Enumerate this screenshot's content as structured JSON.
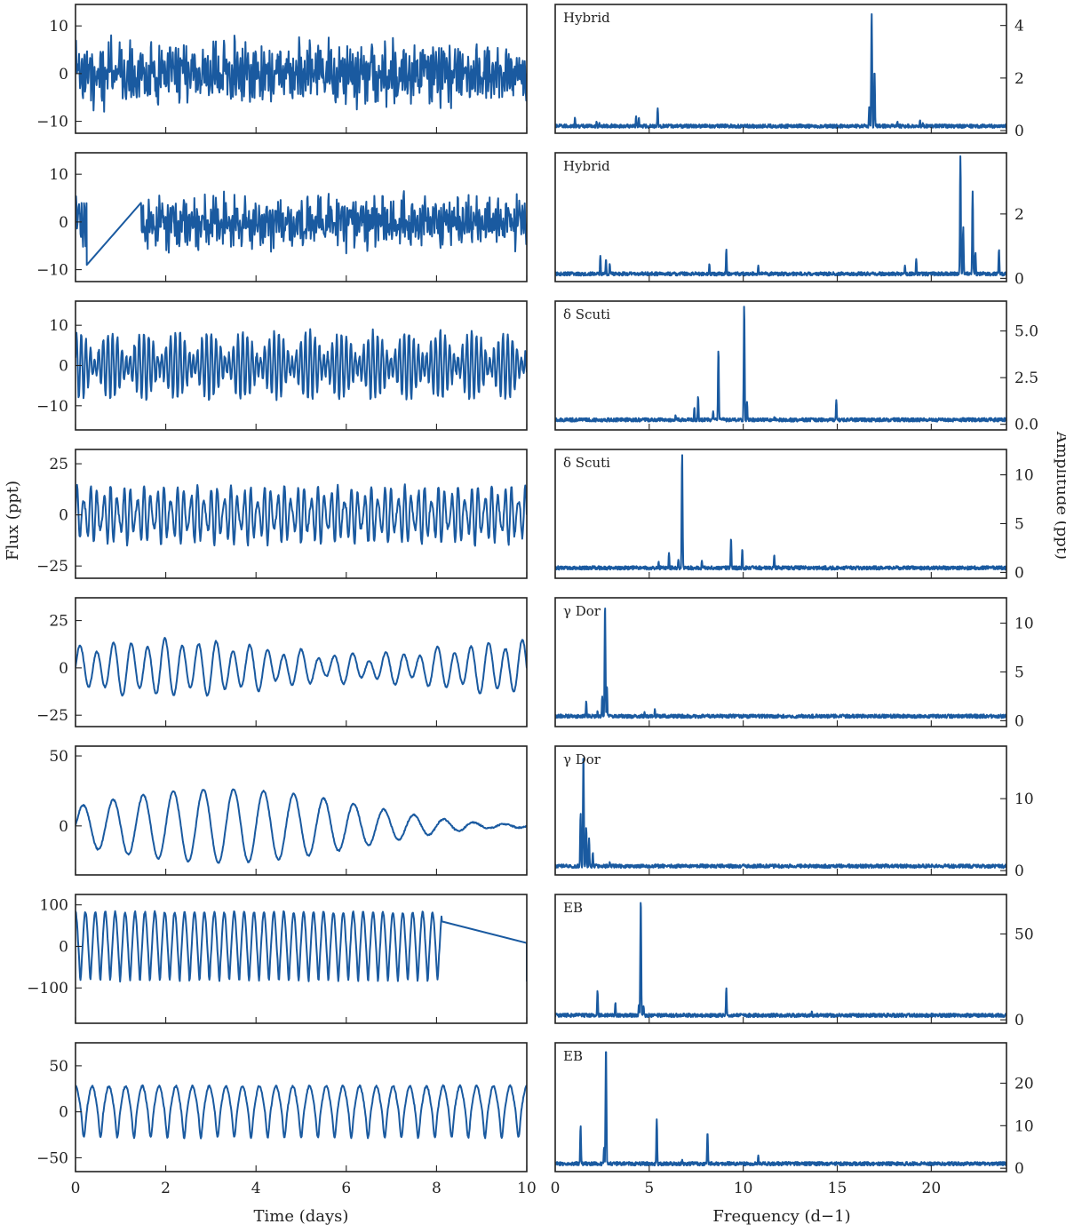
{
  "figure": {
    "left_xlabel": "Time (days)",
    "left_ylabel": "Flux (ppt)",
    "right_xlabel": "Frequency (d−1)",
    "right_ylabel": "Amplitude (ppt)",
    "line_color": "#1a5aa0"
  },
  "chart_data": [
    {
      "type": "line",
      "panel": "light_curve",
      "row": 0,
      "xlim": [
        0,
        10
      ],
      "ylim": [
        -12.5,
        14.5
      ],
      "yticks": [
        -10,
        0,
        10
      ],
      "xticks": [
        0,
        2,
        4,
        6,
        8,
        10
      ],
      "amplitude": 5,
      "gap": null
    },
    {
      "type": "line",
      "panel": "periodogram",
      "row": 0,
      "label": "Hybrid",
      "xlim": [
        0,
        24
      ],
      "ylim": [
        -0.1,
        4.8
      ],
      "yticks": [
        0,
        2,
        4
      ],
      "xticks": [
        0,
        5,
        10,
        15,
        20
      ],
      "peaks": [
        [
          16.83,
          4.5
        ],
        [
          16.98,
          2.3
        ],
        [
          16.7,
          0.9
        ],
        [
          5.45,
          0.85
        ],
        [
          4.3,
          0.55
        ],
        [
          4.45,
          0.5
        ],
        [
          1.05,
          0.5
        ],
        [
          2.2,
          0.35
        ],
        [
          2.35,
          0.3
        ],
        [
          18.2,
          0.35
        ],
        [
          19.4,
          0.4
        ],
        [
          19.55,
          0.3
        ],
        [
          3.0,
          0.25
        ]
      ]
    },
    {
      "type": "line",
      "panel": "light_curve",
      "row": 1,
      "xlim": [
        0,
        10
      ],
      "ylim": [
        -12.5,
        14.5
      ],
      "yticks": [
        -10,
        0,
        10
      ],
      "xticks": [
        0,
        2,
        4,
        6,
        8,
        10
      ],
      "amplitude": 4,
      "gap": [
        0.25,
        1.45
      ],
      "gap_values": [
        -9,
        4
      ]
    },
    {
      "type": "line",
      "panel": "periodogram",
      "row": 1,
      "label": "Hybrid",
      "xlim": [
        0,
        24
      ],
      "ylim": [
        -0.1,
        3.9
      ],
      "yticks": [
        0,
        2
      ],
      "xticks": [
        0,
        5,
        10,
        15,
        20
      ],
      "peaks": [
        [
          21.55,
          3.8
        ],
        [
          21.7,
          1.6
        ],
        [
          22.2,
          2.7
        ],
        [
          22.35,
          0.8
        ],
        [
          23.6,
          0.9
        ],
        [
          9.1,
          0.9
        ],
        [
          8.2,
          0.45
        ],
        [
          10.8,
          0.4
        ],
        [
          2.4,
          0.7
        ],
        [
          2.7,
          0.6
        ],
        [
          2.9,
          0.45
        ],
        [
          18.6,
          0.4
        ],
        [
          19.2,
          0.6
        ]
      ]
    },
    {
      "type": "line",
      "panel": "light_curve",
      "row": 2,
      "xlim": [
        0,
        10
      ],
      "ylim": [
        -16,
        16
      ],
      "yticks": [
        -10,
        0,
        10
      ],
      "xticks": [
        0,
        2,
        4,
        6,
        8,
        10
      ],
      "amplitude": 7,
      "gap": null
    },
    {
      "type": "line",
      "panel": "periodogram",
      "row": 2,
      "label": "δ Scuti",
      "xlim": [
        0,
        24
      ],
      "ylim": [
        -0.3,
        6.6
      ],
      "yticks": [
        0.0,
        2.5,
        5.0
      ],
      "xticks": [
        0,
        5,
        10,
        15,
        20
      ],
      "peaks": [
        [
          10.05,
          6.4
        ],
        [
          8.68,
          4.0
        ],
        [
          10.2,
          1.2
        ],
        [
          7.6,
          1.5
        ],
        [
          7.4,
          0.9
        ],
        [
          8.4,
          0.7
        ],
        [
          14.95,
          1.3
        ],
        [
          6.4,
          0.5
        ],
        [
          11.65,
          0.4
        ],
        [
          13.0,
          0.3
        ],
        [
          16.6,
          0.2
        ],
        [
          19.2,
          0.2
        ]
      ]
    },
    {
      "type": "line",
      "panel": "light_curve",
      "row": 3,
      "xlim": [
        0,
        10
      ],
      "ylim": [
        -31,
        32
      ],
      "yticks": [
        -25,
        0,
        25
      ],
      "xticks": [
        0,
        2,
        4,
        6,
        8,
        10
      ],
      "amplitude": 12,
      "gap": null
    },
    {
      "type": "line",
      "panel": "periodogram",
      "row": 3,
      "label": "δ Scuti",
      "xlim": [
        0,
        24
      ],
      "ylim": [
        -0.6,
        12.6
      ],
      "yticks": [
        0,
        5,
        10
      ],
      "xticks": [
        0,
        5,
        10,
        15,
        20
      ],
      "peaks": [
        [
          6.75,
          12.2
        ],
        [
          9.35,
          3.5
        ],
        [
          9.95,
          2.4
        ],
        [
          11.65,
          1.8
        ],
        [
          6.05,
          2.0
        ],
        [
          5.5,
          1.1
        ],
        [
          6.55,
          1.3
        ],
        [
          7.8,
          1.2
        ],
        [
          10.5,
          0.7
        ],
        [
          15.5,
          0.6
        ],
        [
          12.0,
          0.4
        ]
      ]
    },
    {
      "type": "line",
      "panel": "light_curve",
      "row": 4,
      "xlim": [
        0,
        10
      ],
      "ylim": [
        -31,
        37
      ],
      "yticks": [
        -25,
        0,
        25
      ],
      "xticks": [
        0,
        2,
        4,
        6,
        8,
        10
      ],
      "amplitude": 12,
      "gap": null
    },
    {
      "type": "line",
      "panel": "periodogram",
      "row": 4,
      "label": "γ Dor",
      "xlim": [
        0,
        24
      ],
      "ylim": [
        -0.6,
        12.6
      ],
      "yticks": [
        0,
        5,
        10
      ],
      "xticks": [
        0,
        5,
        10,
        15,
        20
      ],
      "peaks": [
        [
          2.65,
          12.0
        ],
        [
          2.75,
          3.6
        ],
        [
          2.5,
          2.5
        ],
        [
          1.65,
          2.0
        ],
        [
          2.25,
          1.0
        ],
        [
          4.75,
          0.9
        ],
        [
          5.3,
          1.2
        ]
      ]
    },
    {
      "type": "line",
      "panel": "light_curve",
      "row": 5,
      "xlim": [
        0,
        10
      ],
      "ylim": [
        -35,
        57
      ],
      "yticks": [
        0,
        50
      ],
      "xticks": [
        0,
        2,
        4,
        6,
        8,
        10
      ],
      "amplitude": 25,
      "gap": null
    },
    {
      "type": "line",
      "panel": "periodogram",
      "row": 5,
      "label": "γ Dor",
      "xlim": [
        0,
        24
      ],
      "ylim": [
        -0.6,
        17.3
      ],
      "yticks": [
        0,
        10
      ],
      "xticks": [
        0,
        5,
        10,
        15,
        20
      ],
      "peaks": [
        [
          1.5,
          16.5
        ],
        [
          1.35,
          8.0
        ],
        [
          1.65,
          6.0
        ],
        [
          1.8,
          4.5
        ],
        [
          2.0,
          2.5
        ],
        [
          2.9,
          1.2
        ],
        [
          3.1,
          0.8
        ]
      ]
    },
    {
      "type": "line",
      "panel": "light_curve",
      "row": 6,
      "xlim": [
        0,
        10
      ],
      "ylim": [
        -185,
        125
      ],
      "yticks": [
        -100,
        0,
        100
      ],
      "xticks": [
        0,
        2,
        4,
        6,
        8,
        10
      ],
      "amplitude": 110,
      "gap": [
        8.12,
        10
      ],
      "gap_values": [
        60,
        8
      ]
    },
    {
      "type": "line",
      "panel": "periodogram",
      "row": 6,
      "label": "EB",
      "xlim": [
        0,
        24
      ],
      "ylim": [
        -2,
        73
      ],
      "yticks": [
        0,
        50
      ],
      "xticks": [
        0,
        5,
        10,
        15,
        20
      ],
      "peaks": [
        [
          4.55,
          71.0
        ],
        [
          4.45,
          9.0
        ],
        [
          4.7,
          8.0
        ],
        [
          9.1,
          18.5
        ],
        [
          2.25,
          17.0
        ],
        [
          3.2,
          10.0
        ],
        [
          13.65,
          5.0
        ],
        [
          1.6,
          3.0
        ],
        [
          6.85,
          3.0
        ],
        [
          1.0,
          2.5
        ]
      ]
    },
    {
      "type": "line",
      "panel": "light_curve",
      "row": 7,
      "xlim": [
        0,
        10
      ],
      "ylim": [
        -65,
        75
      ],
      "yticks": [
        -50,
        0,
        50
      ],
      "xticks": [
        0,
        2,
        4,
        6,
        8,
        10
      ],
      "amplitude": 40,
      "gap": null
    },
    {
      "type": "line",
      "panel": "periodogram",
      "row": 7,
      "label": "EB",
      "xlim": [
        0,
        24
      ],
      "ylim": [
        -0.8,
        29.5
      ],
      "yticks": [
        0,
        10,
        20
      ],
      "xticks": [
        0,
        5,
        10,
        15,
        20
      ],
      "peaks": [
        [
          2.7,
          29.0
        ],
        [
          2.6,
          5.0
        ],
        [
          1.35,
          10.0
        ],
        [
          5.4,
          11.5
        ],
        [
          8.1,
          8.5
        ],
        [
          10.8,
          3.0
        ],
        [
          6.75,
          2.0
        ],
        [
          21.1,
          1.5
        ],
        [
          21.3,
          1.5
        ],
        [
          18.5,
          0.5
        ]
      ]
    }
  ]
}
